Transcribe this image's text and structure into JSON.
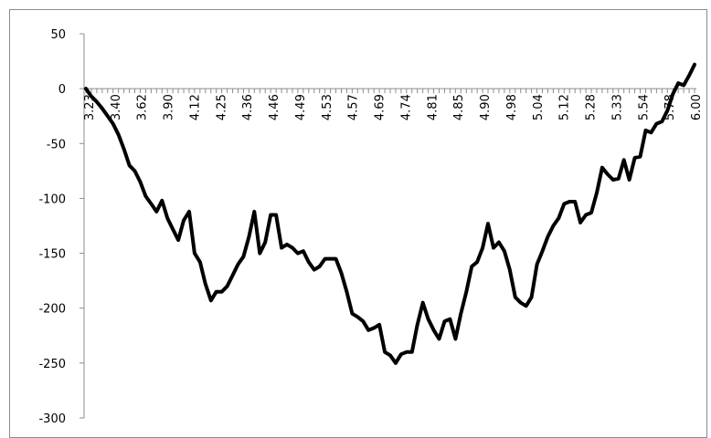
{
  "chart_data": {
    "type": "line",
    "title": "",
    "xlabel": "",
    "ylabel": "",
    "ylim": [
      -300,
      50
    ],
    "yticks": [
      50,
      0,
      -50,
      -100,
      -150,
      -200,
      -250,
      -300
    ],
    "grid": false,
    "legend": "none",
    "x_tick_labels": [
      "3.23",
      "3.40",
      "3.62",
      "3.90",
      "4.12",
      "4.25",
      "4.36",
      "4.46",
      "4.49",
      "4.53",
      "4.57",
      "4.69",
      "4.74",
      "4.81",
      "4.85",
      "4.90",
      "4.98",
      "5.04",
      "5.12",
      "5.28",
      "5.33",
      "5.54",
      "5.78",
      "6.00"
    ],
    "series": [
      {
        "color": "#000000",
        "values": [
          0,
          -7,
          -12,
          -18,
          -25,
          -32,
          -42,
          -55,
          -70,
          -75,
          -85,
          -98,
          -105,
          -112,
          -102,
          -118,
          -128,
          -138,
          -120,
          -112,
          -150,
          -158,
          -178,
          -193,
          -185,
          -185,
          -180,
          -170,
          -160,
          -153,
          -135,
          -112,
          -150,
          -140,
          -115,
          -115,
          -145,
          -142,
          -145,
          -150,
          -148,
          -158,
          -165,
          -162,
          -155,
          -155,
          -155,
          -168,
          -185,
          -205,
          -208,
          -212,
          -220,
          -218,
          -215,
          -240,
          -243,
          -250,
          -242,
          -240,
          -240,
          -215,
          -195,
          -210,
          -220,
          -228,
          -212,
          -210,
          -228,
          -205,
          -185,
          -162,
          -158,
          -145,
          -123,
          -145,
          -140,
          -148,
          -165,
          -190,
          -195,
          -198,
          -190,
          -160,
          -148,
          -135,
          -125,
          -118,
          -105,
          -103,
          -103,
          -122,
          -115,
          -113,
          -95,
          -72,
          -78,
          -83,
          -82,
          -65,
          -83,
          -63,
          -62,
          -38,
          -40,
          -32,
          -30,
          -20,
          -5,
          5,
          3,
          12,
          22
        ]
      }
    ]
  }
}
